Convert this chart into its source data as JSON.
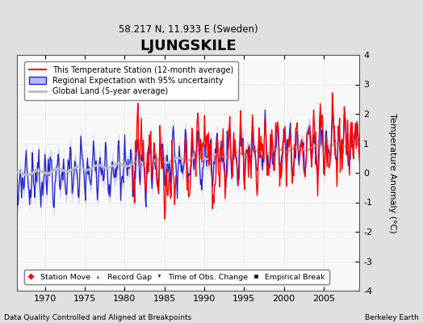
{
  "title": "LJUNGSKILE",
  "subtitle": "58.217 N, 11.933 E (Sweden)",
  "ylabel": "Temperature Anomaly (°C)",
  "xlabel_bottom": "Data Quality Controlled and Aligned at Breakpoints",
  "xlabel_right": "Berkeley Earth",
  "ylim": [
    -4,
    4
  ],
  "xlim": [
    1966.5,
    2009.5
  ],
  "fig_bg": "#e0e0e0",
  "plot_bg": "#f8f8f8",
  "grid_color": "#dddddd",
  "legend_labels": [
    "This Temperature Station (12-month average)",
    "Regional Expectation with 95% uncertainty",
    "Global Land (5-year average)"
  ],
  "legend_marker_labels": [
    "Station Move",
    "Record Gap",
    "Time of Obs. Change",
    "Empirical Break"
  ],
  "xticks": [
    1970,
    1975,
    1980,
    1985,
    1990,
    1995,
    2000,
    2005
  ],
  "yticks": [
    -4,
    -3,
    -2,
    -1,
    0,
    1,
    2,
    3,
    4
  ]
}
